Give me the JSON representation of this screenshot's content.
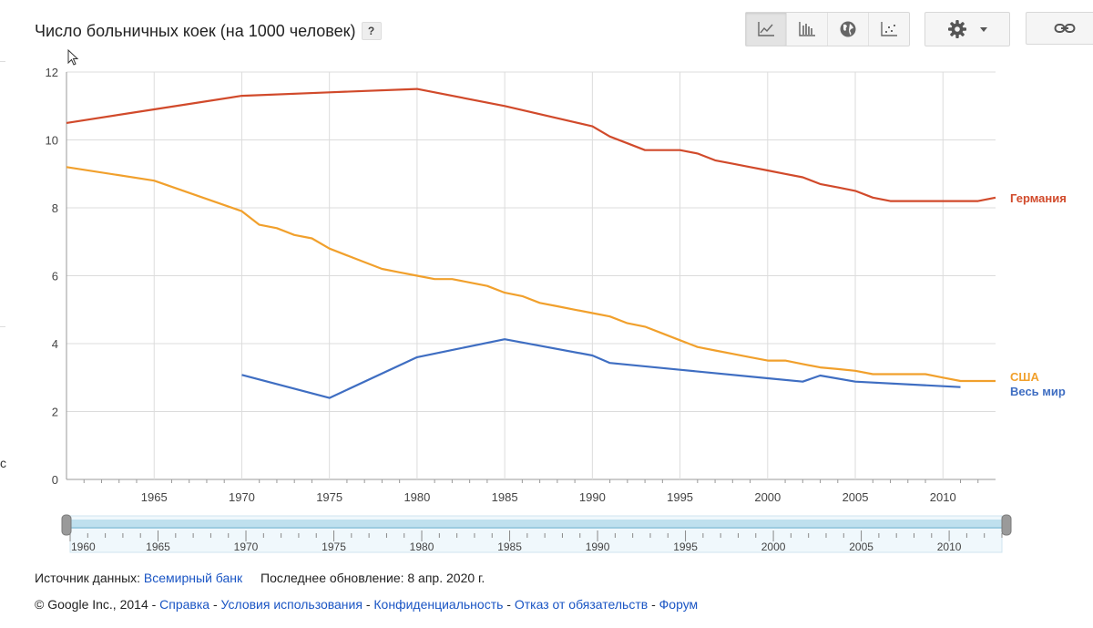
{
  "header": {
    "title": "Число больничных коек (на 1000 человек)",
    "help_label": "?",
    "toolbar": [
      {
        "name": "line-chart",
        "icon": "line-chart-icon",
        "active": true
      },
      {
        "name": "bar-chart",
        "icon": "bar-chart-icon",
        "active": false
      },
      {
        "name": "map",
        "icon": "globe-icon",
        "active": false
      },
      {
        "name": "scatter",
        "icon": "scatter-icon",
        "active": false
      }
    ],
    "settings_icon": "gear-icon",
    "link_icon": "link-icon"
  },
  "chart_data": {
    "type": "line",
    "title": "",
    "xlabel": "",
    "ylabel": "",
    "xlim": [
      1960,
      2013
    ],
    "ylim": [
      0,
      12
    ],
    "yticks": [
      0,
      2,
      4,
      6,
      8,
      10,
      12
    ],
    "xticks": [
      1965,
      1970,
      1975,
      1980,
      1985,
      1990,
      1995,
      2000,
      2005,
      2010
    ],
    "grid": true,
    "legend_position": "right (labels at line ends)",
    "series": [
      {
        "name": "Германия",
        "color": "#d14a2b",
        "x": [
          1960,
          1965,
          1970,
          1975,
          1980,
          1985,
          1990,
          1991,
          1992,
          1993,
          1994,
          1995,
          1996,
          1997,
          1998,
          1999,
          2000,
          2001,
          2002,
          2003,
          2004,
          2005,
          2006,
          2007,
          2008,
          2009,
          2010,
          2011,
          2012,
          2013
        ],
        "y": [
          10.5,
          10.9,
          11.3,
          11.4,
          11.5,
          11.0,
          10.4,
          10.1,
          9.9,
          9.7,
          9.7,
          9.7,
          9.6,
          9.4,
          9.3,
          9.2,
          9.1,
          9.0,
          8.9,
          8.7,
          8.6,
          8.5,
          8.3,
          8.2,
          8.2,
          8.2,
          8.2,
          8.2,
          8.2,
          8.3
        ]
      },
      {
        "name": "США",
        "color": "#f1a02c",
        "x": [
          1960,
          1965,
          1970,
          1971,
          1972,
          1973,
          1974,
          1975,
          1976,
          1977,
          1978,
          1979,
          1980,
          1981,
          1982,
          1983,
          1984,
          1985,
          1986,
          1987,
          1988,
          1989,
          1990,
          1991,
          1992,
          1993,
          1994,
          1995,
          1996,
          1997,
          1998,
          1999,
          2000,
          2001,
          2002,
          2003,
          2004,
          2005,
          2006,
          2007,
          2008,
          2009,
          2010,
          2011,
          2012,
          2013
        ],
        "y": [
          9.2,
          8.8,
          7.9,
          7.5,
          7.4,
          7.2,
          7.1,
          6.8,
          6.6,
          6.4,
          6.2,
          6.1,
          6.0,
          5.9,
          5.9,
          5.8,
          5.7,
          5.5,
          5.4,
          5.2,
          5.1,
          5.0,
          4.9,
          4.8,
          4.6,
          4.5,
          4.3,
          4.1,
          3.9,
          3.8,
          3.7,
          3.6,
          3.5,
          3.5,
          3.4,
          3.3,
          3.25,
          3.2,
          3.1,
          3.1,
          3.1,
          3.1,
          3.0,
          2.9,
          2.9,
          2.9
        ]
      },
      {
        "name": "Весь мир",
        "color": "#3f6ec2",
        "x": [
          1970,
          1975,
          1980,
          1985,
          1990,
          1991,
          1995,
          2000,
          2002,
          2003,
          2005,
          2011
        ],
        "y": [
          3.08,
          2.4,
          3.6,
          4.13,
          3.65,
          3.43,
          3.23,
          2.98,
          2.88,
          3.06,
          2.88,
          2.72
        ]
      }
    ]
  },
  "slider": {
    "ticks": [
      "1960",
      "1965",
      "1970",
      "1975",
      "1980",
      "1985",
      "1990",
      "1995",
      "2000",
      "2005",
      "2010"
    ]
  },
  "footer": {
    "source_label": "Источник данных:",
    "source_link": "Всемирный банк",
    "updated": "Последнее обновление: 8 апр. 2020 г.",
    "copyright": "© Google Inc., 2014 -",
    "links": [
      "Справка",
      "Условия использования",
      "Конфиденциальность",
      "Отказ от обязательств",
      "Форум"
    ],
    "separator": "-"
  },
  "edge_text": "c"
}
